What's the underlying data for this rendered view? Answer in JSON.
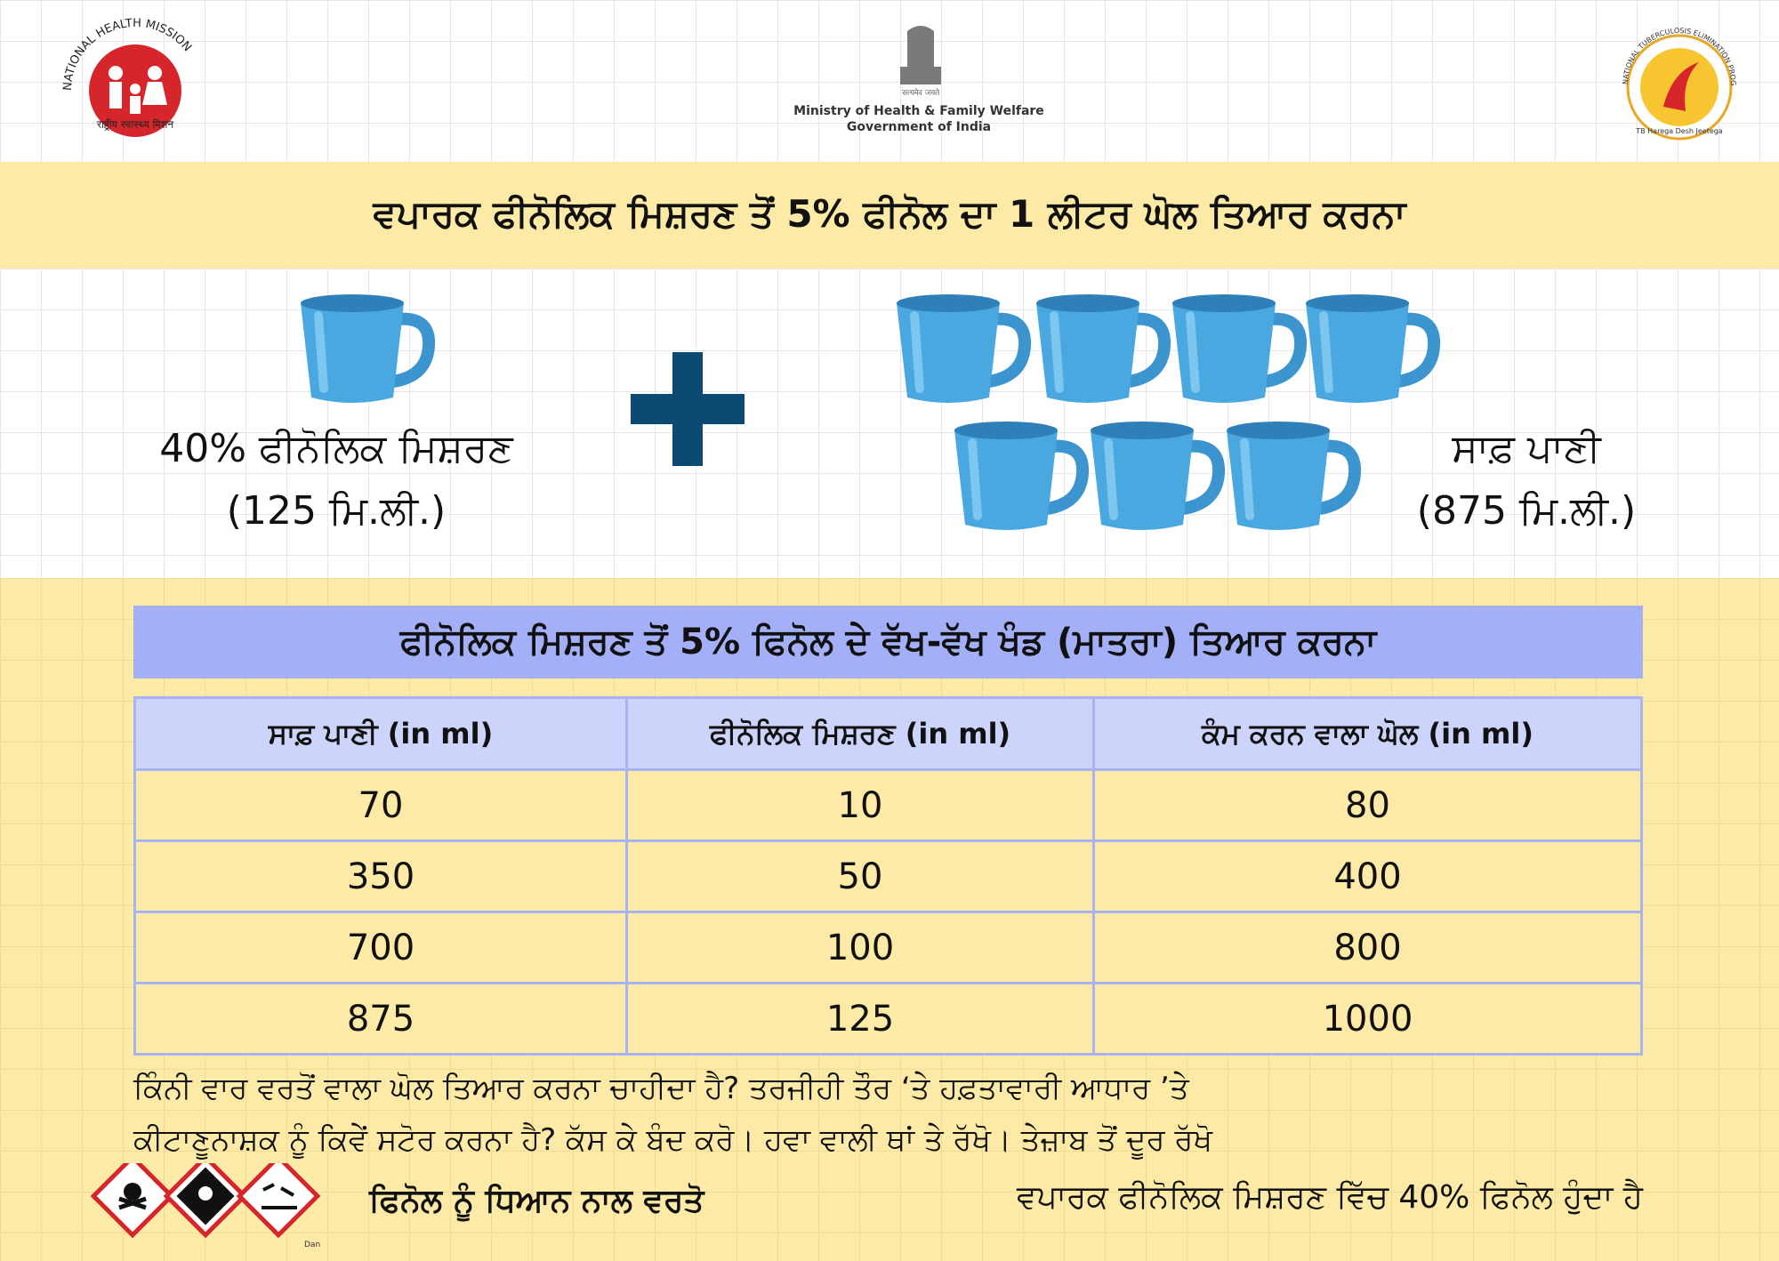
{
  "header": {
    "nhm_name": "NATIONAL HEALTH MISSION",
    "nhm_hindi": "राष्ट्रीय स्वास्थ्य मिशन",
    "motto": "सत्यमेव जयते",
    "ministry": "Ministry of Health & Family Welfare",
    "government": "Government of India",
    "ntep_name": "NATIONAL TUBERCULOSIS ELIMINATION PROGRAMME",
    "ntep_slogan": "TB Harega Desh Jeetega"
  },
  "title": "ਵਪਾਰਕ ਫੀਨੋਲਿਕ ਮਿਸ਼ਰਣ ਤੋਂ 5% ਫੀਨੋਲ ਦਾ 1 ਲੀਟਰ ਘੋਲ ਤਿਆਰ ਕਰਨਾ",
  "mix": {
    "left_label": "40% ਫੀਨੋਲਿਕ ਮਿਸ਼ਰਣ",
    "left_amount": "(125 ਮਿ.ਲੀ.)",
    "right_label": "ਸਾਫ਼ ਪਾਣੀ",
    "right_amount": "(875 ਮਿ.ਲੀ.)"
  },
  "table": {
    "title": "ਫੀਨੋਲਿਕ ਮਿਸ਼ਰਣ ਤੋਂ 5% ਫਿਨੋਲ ਦੇ ਵੱਖ-ਵੱਖ ਖੰਡ (ਮਾਤਰਾ) ਤਿਆਰ ਕਰਨਾ",
    "headers": [
      "ਸਾਫ਼ ਪਾਣੀ (in ml)",
      "ਫੀਨੋਲਿਕ ਮਿਸ਼ਰਣ (in ml)",
      "ਕੰਮ ਕਰਨ ਵਾਲਾ ਘੋਲ (in ml)"
    ],
    "rows": [
      [
        70,
        10,
        80
      ],
      [
        350,
        50,
        400
      ],
      [
        700,
        100,
        800
      ],
      [
        875,
        125,
        1000
      ]
    ]
  },
  "notes": [
    "ਕਿੰਨੀ ਵਾਰ ਵਰਤੋਂ ਵਾਲਾ ਘੋਲ ਤਿਆਰ ਕਰਨਾ ਚਾਹੀਦਾ ਹੈ? ਤਰਜੀਹੀ ਤੌਰ ‘ਤੇ ਹਫ਼ਤਾਵਾਰੀ ਆਧਾਰ ’ਤੇ",
    "ਕੀਟਾਣੂਨਾਸ਼ਕ ਨੂੰ ਕਿਵੇਂ ਸਟੋਰ ਕਰਨਾ ਹੈ? ਕੱਸ ਕੇ ਬੰਦ ਕਰੋ। ਹਵਾ ਵਾਲੀ ਥਾਂ ਤੇ ਰੱਖੋ। ਤੇਜ਼ਾਬ ਤੋਂ ਦੂਰ ਰੱਖੋ"
  ],
  "footer": {
    "hazard_label": "Dan",
    "caution": "ਫਿਨੋਲ ਨੂੰ ਧਿਆਨ ਨਾਲ ਵਰਤੋ",
    "fact": "ਵਪਾਰਕ ਫੀਨੋਲਿਕ ਮਿਸ਼ਰਣ ਵਿੱਚ 40% ਫਿਨੋਲ ਹੁੰਦਾ ਹੈ"
  }
}
